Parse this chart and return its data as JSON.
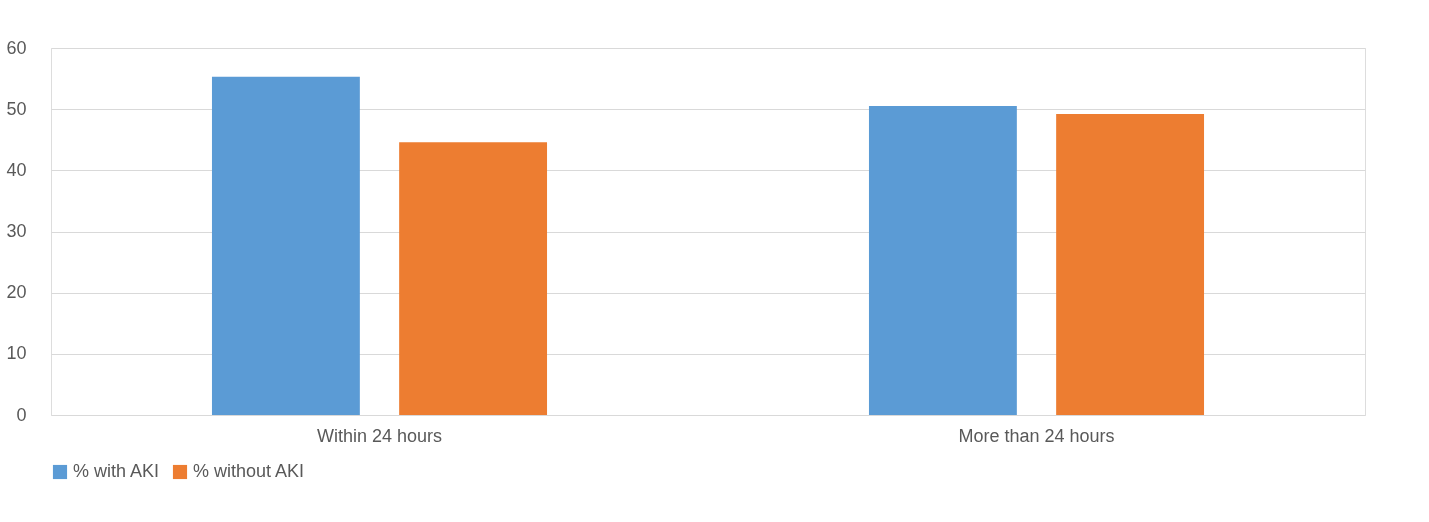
{
  "chart_data": {
    "type": "bar",
    "categories": [
      "Within 24 hours",
      "More than 24 hours"
    ],
    "series": [
      {
        "name": "% with AKI",
        "color": "#5b9bd5",
        "values": [
          55.3,
          50.5
        ]
      },
      {
        "name": "% without AKI",
        "color": "#ed7d31",
        "values": [
          44.6,
          49.2
        ]
      }
    ],
    "ylim": [
      0,
      60
    ],
    "yticks": [
      0,
      10,
      20,
      30,
      40,
      50,
      60
    ],
    "grid": "y",
    "legend": "bottom"
  }
}
